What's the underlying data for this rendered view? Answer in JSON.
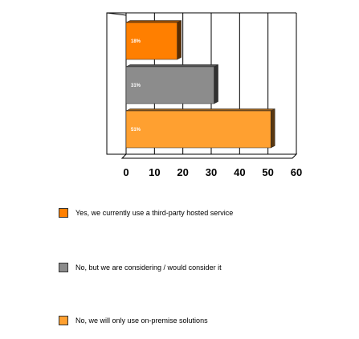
{
  "chart_data": {
    "type": "bar",
    "orientation": "horizontal",
    "series": [
      {
        "name": "Yes, we currently use a third-party hosted service",
        "value": 18,
        "label": "18%",
        "color": "#ff7f00"
      },
      {
        "name": "No, but we are considering / would consider it",
        "value": 31,
        "label": "31%",
        "color": "#8c8c8c"
      },
      {
        "name": "No, we will only use on-premise solutions",
        "value": 51,
        "label": "51%",
        "color": "#ffa030"
      }
    ],
    "xlim": [
      0,
      60
    ],
    "xticks": [
      0,
      10,
      20,
      30,
      40,
      50,
      60
    ],
    "grid": true,
    "legend_position": "bottom",
    "title": "",
    "xlabel": "",
    "ylabel": ""
  }
}
